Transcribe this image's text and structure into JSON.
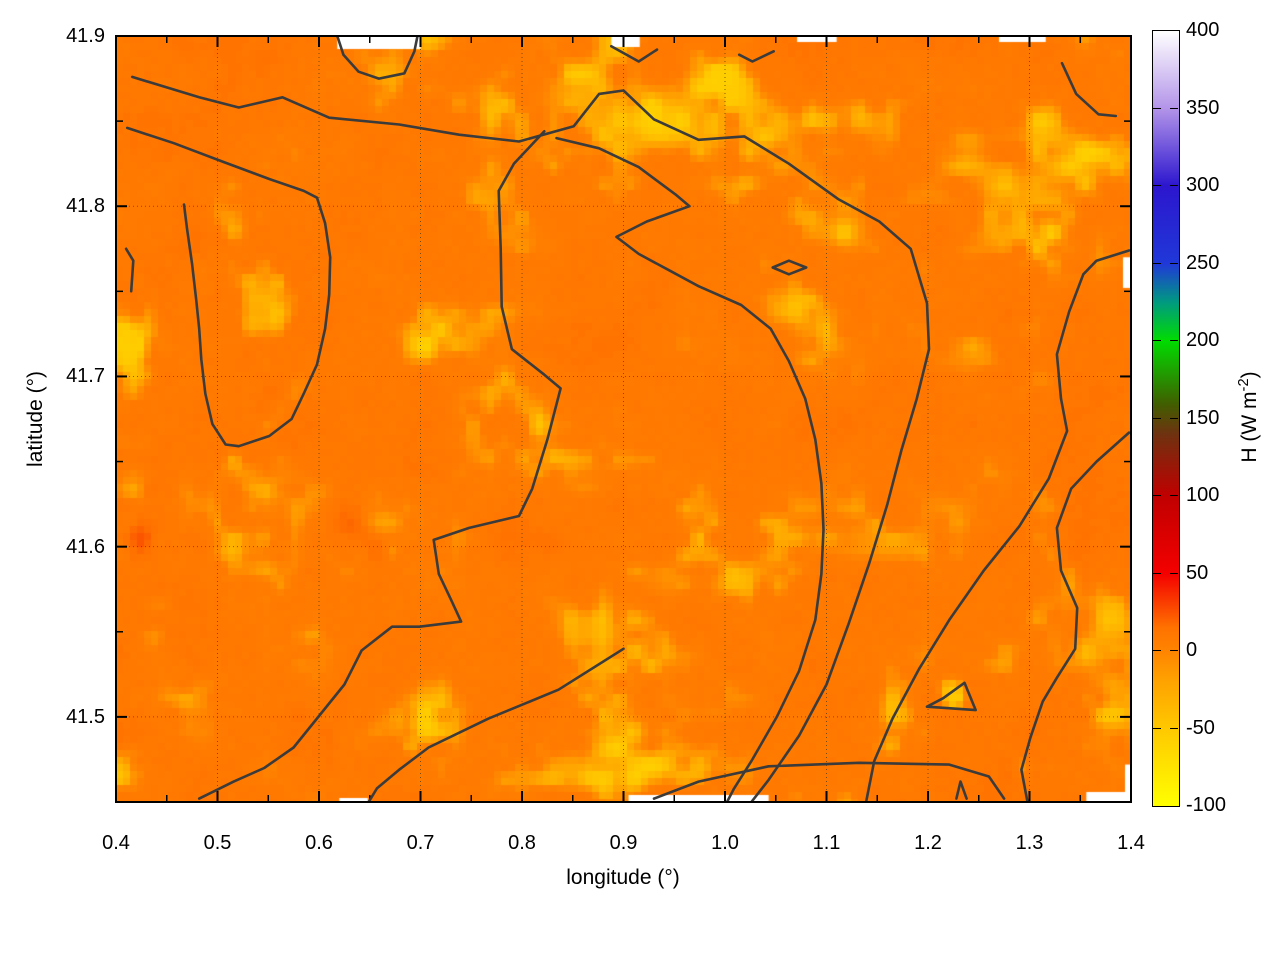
{
  "chart_data": {
    "type": "heatmap",
    "title": "",
    "xlabel": "longitude (°)",
    "ylabel": "latitude (°)",
    "x_range": [
      0.4,
      1.4
    ],
    "y_range": [
      41.45,
      41.9
    ],
    "grid": "dotted, at major ticks",
    "x_ticks": [
      {
        "v": 0.4,
        "label": "0.4"
      },
      {
        "v": 0.5,
        "label": "0.5"
      },
      {
        "v": 0.6,
        "label": "0.6"
      },
      {
        "v": 0.7,
        "label": "0.7"
      },
      {
        "v": 0.8,
        "label": "0.8"
      },
      {
        "v": 0.9,
        "label": "0.9"
      },
      {
        "v": 1.0,
        "label": "1.0"
      },
      {
        "v": 1.1,
        "label": "1.1"
      },
      {
        "v": 1.2,
        "label": "1.2"
      },
      {
        "v": 1.3,
        "label": "1.3"
      },
      {
        "v": 1.4,
        "label": "1.4"
      }
    ],
    "x_minor_ticks": [
      0.45,
      0.55,
      0.65,
      0.75,
      0.85,
      0.95,
      1.05,
      1.15,
      1.25,
      1.35
    ],
    "y_ticks": [
      {
        "v": 41.9,
        "label": "41.9"
      },
      {
        "v": 41.8,
        "label": "41.8"
      },
      {
        "v": 41.7,
        "label": "41.7"
      },
      {
        "v": 41.6,
        "label": "41.6"
      },
      {
        "v": 41.5,
        "label": "41.5"
      }
    ],
    "y_minor_ticks": [
      41.45,
      41.55,
      41.65,
      41.75,
      41.85
    ],
    "colorbar": {
      "label_prefix": "H (W m",
      "label_sup": "-2",
      "label_suffix": ")",
      "min": -100,
      "max": 400,
      "ticks": [
        {
          "v": 400,
          "label": "400"
        },
        {
          "v": 350,
          "label": "350"
        },
        {
          "v": 300,
          "label": "300"
        },
        {
          "v": 250,
          "label": "250"
        },
        {
          "v": 200,
          "label": "200"
        },
        {
          "v": 150,
          "label": "150"
        },
        {
          "v": 100,
          "label": "100"
        },
        {
          "v": 50,
          "label": "50"
        },
        {
          "v": 0,
          "label": "0"
        },
        {
          "v": -50,
          "label": "-50"
        },
        {
          "v": -100,
          "label": "-100"
        }
      ],
      "palette": [
        {
          "v": -100,
          "c": "#ffff00"
        },
        {
          "v": -50,
          "c": "#ffc800"
        },
        {
          "v": -20,
          "c": "#ffa300"
        },
        {
          "v": 0,
          "c": "#ff8400"
        },
        {
          "v": 15,
          "c": "#ff7200"
        },
        {
          "v": 50,
          "c": "#f40000"
        },
        {
          "v": 100,
          "c": "#c00000"
        },
        {
          "v": 140,
          "c": "#6e3210"
        },
        {
          "v": 160,
          "c": "#3f6000"
        },
        {
          "v": 200,
          "c": "#00dc00"
        },
        {
          "v": 225,
          "c": "#009a80"
        },
        {
          "v": 250,
          "c": "#2038d8"
        },
        {
          "v": 300,
          "c": "#2c16ce"
        },
        {
          "v": 350,
          "c": "#b394e9"
        },
        {
          "v": 400,
          "c": "#ffffff"
        }
      ]
    },
    "field_summary": "Sensible heat flux field over NE Spain; mapped values span roughly -55 to +20 W m-2 (orange base with lighter yellow-orange patches); black contour lines drawn at one level (~0 W m-2); small white edge regions have no data.",
    "contours": {
      "level_estimate": 0,
      "polylines": [
        [
          [
            0.416,
            41.876
          ],
          [
            0.482,
            41.864
          ],
          [
            0.521,
            41.858
          ],
          [
            0.564,
            41.864
          ],
          [
            0.61,
            41.852
          ],
          [
            0.679,
            41.848
          ],
          [
            0.738,
            41.842
          ],
          [
            0.797,
            41.838
          ],
          [
            0.851,
            41.847
          ],
          [
            0.876,
            41.866
          ],
          [
            0.9,
            41.868
          ],
          [
            0.93,
            41.851
          ],
          [
            0.974,
            41.839
          ],
          [
            1.019,
            41.841
          ],
          [
            1.063,
            41.825
          ],
          [
            1.112,
            41.804
          ],
          [
            1.152,
            41.791
          ],
          [
            1.183,
            41.775
          ],
          [
            1.199,
            41.743
          ],
          [
            1.201,
            41.716
          ],
          [
            1.189,
            41.687
          ],
          [
            1.174,
            41.657
          ],
          [
            1.16,
            41.625
          ],
          [
            1.142,
            41.59
          ],
          [
            1.122,
            41.555
          ],
          [
            1.1,
            41.519
          ],
          [
            1.073,
            41.489
          ],
          [
            1.043,
            41.463
          ],
          [
            1.026,
            41.45
          ]
        ],
        [
          [
            0.411,
            41.846
          ],
          [
            0.457,
            41.837
          ],
          [
            0.506,
            41.826
          ],
          [
            0.551,
            41.816
          ],
          [
            0.585,
            41.809
          ],
          [
            0.598,
            41.805
          ],
          [
            0.606,
            41.79
          ],
          [
            0.611,
            41.77
          ],
          [
            0.61,
            41.748
          ],
          [
            0.606,
            41.728
          ],
          [
            0.598,
            41.707
          ],
          [
            0.585,
            41.69
          ],
          [
            0.573,
            41.675
          ],
          [
            0.551,
            41.665
          ],
          [
            0.521,
            41.659
          ],
          [
            0.508,
            41.66
          ],
          [
            0.495,
            41.672
          ],
          [
            0.488,
            41.69
          ],
          [
            0.484,
            41.71
          ],
          [
            0.482,
            41.728
          ],
          [
            0.479,
            41.745
          ],
          [
            0.475,
            41.766
          ],
          [
            0.47,
            41.787
          ],
          [
            0.467,
            41.801
          ]
        ],
        [
          [
            0.822,
            41.844
          ],
          [
            0.792,
            41.825
          ],
          [
            0.777,
            41.809
          ],
          [
            0.779,
            41.775
          ],
          [
            0.78,
            41.741
          ],
          [
            0.79,
            41.716
          ],
          [
            0.822,
            41.701
          ],
          [
            0.838,
            41.693
          ],
          [
            0.825,
            41.663
          ],
          [
            0.81,
            41.634
          ],
          [
            0.797,
            41.618
          ],
          [
            0.748,
            41.611
          ],
          [
            0.713,
            41.604
          ],
          [
            0.718,
            41.584
          ],
          [
            0.73,
            41.569
          ],
          [
            0.74,
            41.556
          ],
          [
            0.699,
            41.553
          ],
          [
            0.672,
            41.553
          ],
          [
            0.642,
            41.539
          ],
          [
            0.625,
            41.519
          ],
          [
            0.602,
            41.502
          ],
          [
            0.575,
            41.482
          ],
          [
            0.546,
            41.47
          ],
          [
            0.516,
            41.462
          ],
          [
            0.482,
            41.452
          ]
        ],
        [
          [
            0.834,
            41.84
          ],
          [
            0.876,
            41.834
          ],
          [
            0.915,
            41.823
          ],
          [
            0.951,
            41.807
          ],
          [
            0.965,
            41.8
          ],
          [
            0.923,
            41.791
          ],
          [
            0.893,
            41.782
          ],
          [
            0.915,
            41.772
          ],
          [
            0.943,
            41.763
          ],
          [
            0.974,
            41.753
          ],
          [
            1.016,
            41.742
          ],
          [
            1.045,
            41.728
          ],
          [
            1.063,
            41.709
          ],
          [
            1.079,
            41.687
          ],
          [
            1.089,
            41.663
          ],
          [
            1.095,
            41.637
          ],
          [
            1.097,
            41.61
          ],
          [
            1.095,
            41.584
          ],
          [
            1.089,
            41.557
          ],
          [
            1.073,
            41.527
          ],
          [
            1.051,
            41.5
          ],
          [
            1.026,
            41.474
          ],
          [
            1.009,
            41.458
          ],
          [
            1.002,
            41.45
          ]
        ],
        [
          [
            1.398,
            41.774
          ],
          [
            1.366,
            41.768
          ],
          [
            1.353,
            41.76
          ],
          [
            1.339,
            41.738
          ],
          [
            1.327,
            41.713
          ],
          [
            1.331,
            41.687
          ],
          [
            1.337,
            41.668
          ],
          [
            1.319,
            41.64
          ],
          [
            1.29,
            41.612
          ],
          [
            1.255,
            41.586
          ],
          [
            1.221,
            41.557
          ],
          [
            1.191,
            41.528
          ],
          [
            1.165,
            41.499
          ],
          [
            1.147,
            41.474
          ],
          [
            1.139,
            41.45
          ]
        ],
        [
          [
            1.398,
            41.667
          ],
          [
            1.366,
            41.65
          ],
          [
            1.341,
            41.634
          ],
          [
            1.327,
            41.611
          ],
          [
            1.331,
            41.586
          ],
          [
            1.347,
            41.564
          ],
          [
            1.345,
            41.54
          ],
          [
            1.327,
            41.523
          ],
          [
            1.313,
            41.509
          ],
          [
            1.301,
            41.488
          ],
          [
            1.292,
            41.469
          ],
          [
            1.298,
            41.45
          ]
        ],
        [
          [
            0.618,
            41.9
          ],
          [
            0.624,
            41.889
          ],
          [
            0.639,
            41.879
          ],
          [
            0.659,
            41.875
          ],
          [
            0.684,
            41.878
          ],
          [
            0.694,
            41.891
          ],
          [
            0.697,
            41.9
          ]
        ],
        [
          [
            0.888,
            41.894
          ],
          [
            0.915,
            41.885
          ],
          [
            0.933,
            41.892
          ]
        ],
        [
          [
            1.014,
            41.889
          ],
          [
            1.027,
            41.885
          ],
          [
            1.048,
            41.891
          ]
        ],
        [
          [
            1.332,
            41.884
          ],
          [
            1.346,
            41.866
          ],
          [
            1.368,
            41.854
          ],
          [
            1.385,
            41.853
          ]
        ],
        [
          [
            0.41,
            41.775
          ],
          [
            0.417,
            41.768
          ],
          [
            0.415,
            41.75
          ]
        ],
        [
          [
            1.047,
            41.764
          ],
          [
            1.063,
            41.768
          ],
          [
            1.08,
            41.764
          ],
          [
            1.063,
            41.76
          ],
          [
            1.047,
            41.764
          ]
        ],
        [
          [
            1.199,
            41.506
          ],
          [
            1.247,
            41.504
          ],
          [
            1.236,
            41.52
          ],
          [
            1.215,
            41.511
          ],
          [
            1.199,
            41.506
          ]
        ],
        [
          [
            0.93,
            41.452
          ],
          [
            0.974,
            41.462
          ],
          [
            1.043,
            41.471
          ],
          [
            1.132,
            41.473
          ],
          [
            1.221,
            41.472
          ],
          [
            1.26,
            41.465
          ],
          [
            1.275,
            41.452
          ]
        ],
        [
          [
            0.9,
            41.54
          ],
          [
            0.836,
            41.516
          ],
          [
            0.767,
            41.499
          ],
          [
            0.708,
            41.482
          ],
          [
            0.679,
            41.469
          ],
          [
            0.657,
            41.458
          ],
          [
            0.649,
            41.45
          ]
        ],
        [
          [
            1.228,
            41.452
          ],
          [
            1.232,
            41.462
          ],
          [
            1.238,
            41.452
          ]
        ]
      ]
    },
    "nodata_regions": [
      {
        "edge": "top",
        "from": 0.618,
        "to": 0.7,
        "depth": 13
      },
      {
        "edge": "top",
        "from": 0.888,
        "to": 0.916,
        "depth": 11
      },
      {
        "edge": "top",
        "from": 1.071,
        "to": 1.11,
        "depth": 6
      },
      {
        "edge": "top",
        "from": 1.27,
        "to": 1.316,
        "depth": 6
      },
      {
        "edge": "right",
        "from": 41.752,
        "to": 41.77,
        "depth": 8
      },
      {
        "edge": "right",
        "from": 41.455,
        "to": 41.472,
        "depth": 6
      },
      {
        "edge": "bottom",
        "from": 0.905,
        "to": 1.043,
        "depth": 7
      },
      {
        "edge": "bottom",
        "from": 1.356,
        "to": 1.4,
        "depth": 10
      },
      {
        "edge": "bottom",
        "from": 0.62,
        "to": 0.648,
        "depth": 4
      }
    ],
    "texture": {
      "bright_patches": [
        {
          "x": 0.515,
          "y": 41.795,
          "sx": 0.03,
          "sy": 0.018,
          "a": 0.3
        },
        {
          "x": 0.545,
          "y": 41.735,
          "sx": 0.025,
          "sy": 0.02,
          "a": 0.32
        },
        {
          "x": 0.565,
          "y": 41.685,
          "sx": 0.022,
          "sy": 0.015,
          "a": 0.35
        },
        {
          "x": 0.545,
          "y": 41.645,
          "sx": 0.03,
          "sy": 0.015,
          "a": 0.28
        },
        {
          "x": 0.475,
          "y": 41.835,
          "sx": 0.03,
          "sy": 0.012,
          "a": 0.22
        },
        {
          "x": 0.415,
          "y": 41.72,
          "sx": 0.018,
          "sy": 0.025,
          "a": 0.3
        },
        {
          "x": 0.425,
          "y": 41.635,
          "sx": 0.02,
          "sy": 0.02,
          "a": 0.3
        },
        {
          "x": 0.435,
          "y": 41.56,
          "sx": 0.025,
          "sy": 0.02,
          "a": 0.25
        },
        {
          "x": 0.41,
          "y": 41.475,
          "sx": 0.025,
          "sy": 0.018,
          "a": 0.3
        },
        {
          "x": 0.72,
          "y": 41.862,
          "sx": 0.04,
          "sy": 0.012,
          "a": 0.22
        },
        {
          "x": 0.95,
          "y": 41.845,
          "sx": 0.05,
          "sy": 0.014,
          "a": 0.22
        },
        {
          "x": 1.01,
          "y": 41.875,
          "sx": 0.03,
          "sy": 0.01,
          "a": 0.25
        },
        {
          "x": 1.29,
          "y": 41.72,
          "sx": 0.04,
          "sy": 0.03,
          "a": 0.22
        },
        {
          "x": 1.345,
          "y": 41.605,
          "sx": 0.03,
          "sy": 0.025,
          "a": 0.28
        },
        {
          "x": 1.33,
          "y": 41.83,
          "sx": 0.04,
          "sy": 0.02,
          "a": 0.2
        },
        {
          "x": 1.285,
          "y": 41.475,
          "sx": 0.03,
          "sy": 0.015,
          "a": 0.3
        },
        {
          "x": 1.385,
          "y": 41.51,
          "sx": 0.02,
          "sy": 0.02,
          "a": 0.3
        },
        {
          "x": 1.225,
          "y": 41.513,
          "sx": 0.012,
          "sy": 0.008,
          "a": 0.6
        },
        {
          "x": 0.88,
          "y": 41.468,
          "sx": 0.04,
          "sy": 0.012,
          "a": 0.25
        },
        {
          "x": 0.705,
          "y": 41.5,
          "sx": 0.03,
          "sy": 0.012,
          "a": 0.2
        },
        {
          "x": 1.06,
          "y": 41.66,
          "sx": 0.03,
          "sy": 0.02,
          "a": 0.18
        },
        {
          "x": 1.16,
          "y": 41.8,
          "sx": 0.04,
          "sy": 0.02,
          "a": 0.15
        }
      ],
      "red_patches": [
        {
          "x": 0.425,
          "y": 41.605,
          "sx": 0.008,
          "sy": 0.006,
          "a": 16
        },
        {
          "x": 0.63,
          "y": 41.615,
          "sx": 0.012,
          "sy": 0.008,
          "a": 10
        },
        {
          "x": 0.655,
          "y": 41.6,
          "sx": 0.01,
          "sy": 0.007,
          "a": 8
        }
      ]
    },
    "contour_color": "#3b3b3b",
    "frame_color": "#000000"
  }
}
